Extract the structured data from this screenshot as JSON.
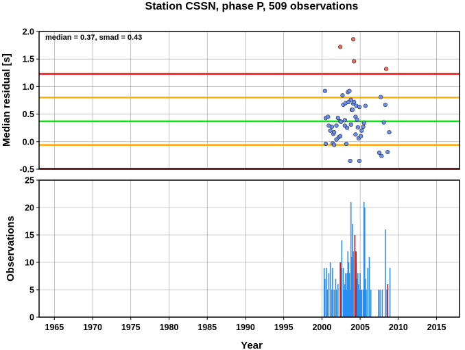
{
  "chart_data": [
    {
      "type": "scatter",
      "title": "Station CSSN, phase P, 509 observations",
      "xlabel": "",
      "ylabel": "Median residual [s]",
      "annotation": "median = 0.37, smad = 0.43",
      "xlim": [
        1963,
        2018
      ],
      "ylim": [
        -0.5,
        2.0
      ],
      "yticks": [
        "2.0",
        "1.5",
        "1.0",
        "0.5",
        "0.0",
        "-0.5"
      ],
      "grid": true,
      "reference_lines": [
        {
          "value": 1.23,
          "color": "#ee1111"
        },
        {
          "value": 0.8,
          "color": "#ffaa00"
        },
        {
          "value": 0.37,
          "color": "#11dd11"
        },
        {
          "value": -0.06,
          "color": "#ffaa00"
        },
        {
          "value": -0.49,
          "color": "#ee1111"
        }
      ],
      "series": [
        {
          "color": "#6a8ff0",
          "points": [
            [
              2000.4,
              0.92
            ],
            [
              2000.5,
              0.43
            ],
            [
              2000.5,
              -0.04
            ],
            [
              2000.8,
              0.45
            ],
            [
              2000.9,
              0.29
            ],
            [
              2001.1,
              0.2
            ],
            [
              2001.3,
              0.27
            ],
            [
              2001.4,
              -0.03
            ],
            [
              2001.5,
              0.14
            ],
            [
              2001.6,
              -0.06
            ],
            [
              2001.6,
              0.17
            ],
            [
              2001.9,
              0.29
            ],
            [
              2002.1,
              0.43
            ],
            [
              2002.2,
              0.08
            ],
            [
              2002.4,
              0.37
            ],
            [
              2002.5,
              0.36
            ],
            [
              2002.7,
              0.84
            ],
            [
              2002.8,
              0.67
            ],
            [
              2003.0,
              0.39
            ],
            [
              2003.0,
              0.29
            ],
            [
              2003.1,
              0.7
            ],
            [
              2003.2,
              -0.04
            ],
            [
              2003.3,
              0.25
            ],
            [
              2003.4,
              0.9
            ],
            [
              2003.5,
              0.72
            ],
            [
              2003.6,
              0.92
            ],
            [
              2003.7,
              -0.35
            ],
            [
              2003.8,
              0.76
            ],
            [
              2003.9,
              0.58
            ],
            [
              2004.1,
              0.69
            ],
            [
              2004.2,
              0.72
            ],
            [
              2004.4,
              0.45
            ],
            [
              2004.4,
              0.13
            ],
            [
              2004.5,
              0.65
            ],
            [
              2004.6,
              0.4
            ],
            [
              2004.7,
              0.26
            ],
            [
              2004.8,
              0.06
            ],
            [
              2004.9,
              0.63
            ],
            [
              2004.9,
              -0.35
            ],
            [
              2005.2,
              0.2
            ],
            [
              2005.4,
              0.27
            ],
            [
              2005.5,
              0.34
            ],
            [
              2005.7,
              0.65
            ],
            [
              2007.5,
              -0.2
            ],
            [
              2007.7,
              0.81
            ],
            [
              2007.8,
              -0.26
            ],
            [
              2008.1,
              0.35
            ],
            [
              2008.3,
              0.67
            ],
            [
              2008.6,
              -0.19
            ],
            [
              2008.8,
              0.17
            ],
            [
              2002.4,
              0.1
            ],
            [
              2004.0,
              0.58
            ],
            [
              2005.1,
              0.1
            ],
            [
              2003.8,
              0.31
            ],
            [
              2001.9,
              0.04
            ]
          ]
        },
        {
          "color": "#f07060",
          "points": [
            [
              2002.4,
              1.72
            ],
            [
              2004.1,
              1.86
            ],
            [
              2004.2,
              1.46
            ],
            [
              2008.4,
              1.32
            ]
          ]
        }
      ]
    },
    {
      "type": "bar",
      "title": "",
      "xlabel": "Year",
      "ylabel": "Observations",
      "xlim": [
        1963,
        2018
      ],
      "ylim": [
        0,
        25
      ],
      "yticks": [
        "25",
        "20",
        "15",
        "10",
        "5",
        "0"
      ],
      "xticks": [
        "1965",
        "1970",
        "1975",
        "1980",
        "1985",
        "1990",
        "1995",
        "2000",
        "2005",
        "2010",
        "2015"
      ],
      "grid": true,
      "series": [
        {
          "color": "#2a8ef0",
          "bars": [
            [
              2000.3,
              9
            ],
            [
              2000.4,
              7
            ],
            [
              2000.6,
              9
            ],
            [
              2000.7,
              5
            ],
            [
              2000.9,
              8
            ],
            [
              2001.1,
              10
            ],
            [
              2001.3,
              5
            ],
            [
              2001.4,
              9
            ],
            [
              2001.6,
              5
            ],
            [
              2001.8,
              7
            ],
            [
              2001.9,
              5
            ],
            [
              2002.1,
              6
            ],
            [
              2002.5,
              9
            ],
            [
              2002.6,
              14
            ],
            [
              2002.8,
              9
            ],
            [
              2002.9,
              5
            ],
            [
              2003.0,
              6
            ],
            [
              2003.1,
              8
            ],
            [
              2003.2,
              5
            ],
            [
              2003.3,
              8
            ],
            [
              2003.4,
              12
            ],
            [
              2003.5,
              10
            ],
            [
              2003.6,
              8
            ],
            [
              2003.7,
              5
            ],
            [
              2003.8,
              21
            ],
            [
              2003.9,
              11
            ],
            [
              2004.0,
              17
            ],
            [
              2004.0,
              5
            ],
            [
              2004.1,
              12
            ],
            [
              2004.3,
              9
            ],
            [
              2004.5,
              10
            ],
            [
              2004.6,
              7
            ],
            [
              2004.7,
              8
            ],
            [
              2004.8,
              6
            ],
            [
              2004.9,
              5
            ],
            [
              2005.0,
              8
            ],
            [
              2005.1,
              5
            ],
            [
              2005.2,
              5
            ],
            [
              2005.4,
              5
            ],
            [
              2005.5,
              21
            ],
            [
              2005.6,
              20
            ],
            [
              2005.7,
              7
            ],
            [
              2005.8,
              5
            ],
            [
              2006.0,
              9
            ],
            [
              2006.2,
              11
            ],
            [
              2006.4,
              5
            ],
            [
              2007.4,
              5
            ],
            [
              2007.6,
              5
            ],
            [
              2007.9,
              5
            ],
            [
              2008.3,
              16
            ],
            [
              2008.5,
              5
            ],
            [
              2008.9,
              9
            ]
          ]
        },
        {
          "color": "#d81818",
          "bars": [
            [
              2002.4,
              10
            ],
            [
              2004.3,
              15
            ],
            [
              2004.45,
              12
            ],
            [
              2008.6,
              6
            ]
          ]
        }
      ]
    }
  ]
}
